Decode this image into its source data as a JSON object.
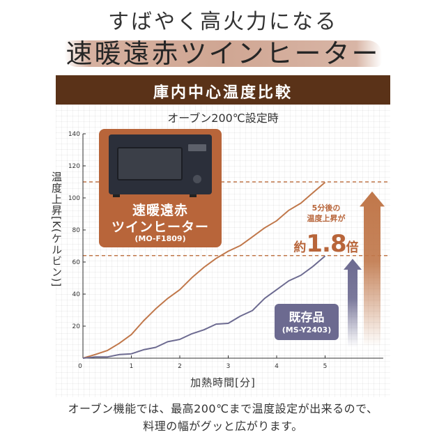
{
  "headline": {
    "line1": "すばやく高火力になる",
    "line2": "速暖遠赤ツインヒーター"
  },
  "section": {
    "title": "庫内中心温度比較"
  },
  "condition_text": "オーブン200℃設定時",
  "labels": {
    "new_product": {
      "name_line1": "速暖遠赤",
      "name_line2": "ツインヒーター",
      "model": "(MO-F1809)"
    },
    "existing_product": {
      "name": "既存品",
      "model": "(MS-Y2403)"
    }
  },
  "callout": {
    "line1": "5分後の",
    "line2": "温度上昇が",
    "prefix": "約",
    "value": "1.8",
    "suffix": "倍"
  },
  "caption": {
    "line1": "オーブン機能では、最高200℃まで温度設定が出来るので、",
    "line2": "料理の幅がグッと広がります。"
  },
  "colors": {
    "brown_bar": "#5a3218",
    "new_series": "#c0774a",
    "existing_series": "#6c6a90",
    "brush_accent": "#c8967f"
  },
  "chart_data": {
    "type": "line",
    "xlabel": "加熱時間[分]",
    "ylabel": "温度上昇[K(ケルビン)]",
    "xlim": [
      0,
      6.2
    ],
    "ylim": [
      0,
      140
    ],
    "x_ticks": [
      "0",
      "1",
      "2",
      "3",
      "4",
      "5"
    ],
    "y_ticks": [
      "20",
      "40",
      "60",
      "80",
      "100",
      "120",
      "140"
    ],
    "grid": false,
    "series": [
      {
        "name": "速暖遠赤ツインヒーター",
        "color": "#c0774a",
        "x": [
          0,
          0.25,
          0.5,
          0.75,
          1.0,
          1.25,
          1.5,
          1.75,
          2.0,
          2.25,
          2.5,
          2.75,
          3.0,
          3.25,
          3.5,
          3.75,
          4.0,
          4.25,
          4.5,
          4.75,
          5.0
        ],
        "y": [
          0,
          2,
          5,
          9,
          15,
          23,
          31,
          37,
          43,
          50,
          57,
          62,
          67,
          70,
          76,
          81,
          86,
          92,
          97,
          103,
          110
        ]
      },
      {
        "name": "既存品",
        "color": "#6c6a90",
        "x": [
          0,
          0.25,
          0.5,
          0.75,
          1.0,
          1.25,
          1.5,
          1.75,
          2.0,
          2.25,
          2.5,
          2.75,
          3.0,
          3.25,
          3.5,
          3.75,
          4.0,
          4.25,
          4.5,
          4.75,
          5.0
        ],
        "y": [
          0,
          0.5,
          1,
          2,
          3,
          5,
          7,
          10,
          12,
          15,
          18,
          21,
          22,
          26,
          30,
          37,
          43,
          48,
          52,
          57,
          64
        ]
      }
    ],
    "reference_lines": [
      110,
      64
    ],
    "arrows": [
      {
        "series": "速暖遠赤ツインヒーター",
        "from": 0,
        "to": 104
      },
      {
        "series": "既存品",
        "from": 0,
        "to": 62
      }
    ]
  }
}
